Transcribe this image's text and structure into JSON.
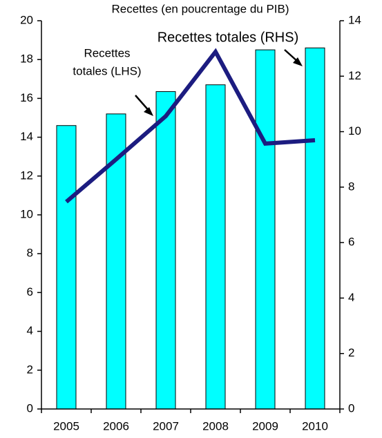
{
  "chart_data": {
    "type": "bar",
    "title": "Recettes (en poucrentage du PIB)",
    "categories": [
      "2005",
      "2006",
      "2007",
      "2008",
      "2009",
      "2010"
    ],
    "series": [
      {
        "name": "Recettes totales (LHS)",
        "color": "#00ffff",
        "type": "bar",
        "values": [
          14.6,
          15.2,
          16.35,
          16.7,
          18.5,
          18.6
        ]
      },
      {
        "name": "Recettes totales (RHS)",
        "color": "#1c1c80",
        "type": "line",
        "axis": "y2",
        "values": [
          7.47,
          9.0,
          10.56,
          12.88,
          9.57,
          9.69
        ]
      }
    ],
    "annotations": [
      "Recettes totales (RHS)",
      "Recettes",
      "totales (LHS)"
    ],
    "ylim": [
      0,
      20
    ],
    "yticks": [
      0,
      2,
      4,
      6,
      8,
      10,
      12,
      14,
      16,
      18,
      20
    ],
    "y2lim": [
      0,
      14
    ],
    "y2ticks": [
      0,
      2,
      4,
      6,
      8,
      10,
      12,
      14
    ]
  }
}
